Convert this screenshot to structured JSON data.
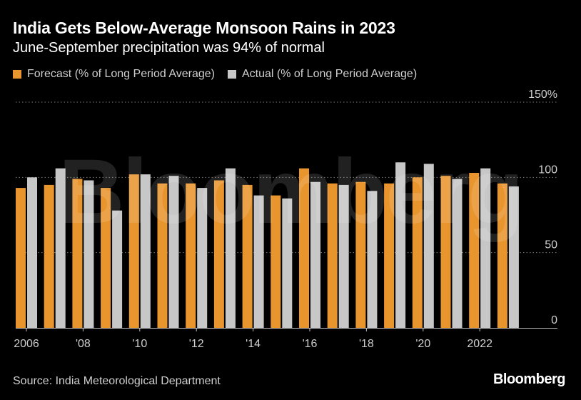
{
  "title": "India Gets Below-Average Monsoon Rains in 2023",
  "subtitle": "June-September precipitation was 94% of normal",
  "source": "Source: India Meteorological Department",
  "brand": "Bloomberg",
  "watermark": "Bloomberg",
  "colors": {
    "forecast": "#E8952E",
    "actual": "#C7C7C7",
    "grid": "#7a7a7a",
    "axis": "#bfbfbf"
  },
  "chart_data": {
    "type": "bar",
    "categories": [
      "2006",
      "2007",
      "2008",
      "2009",
      "2010",
      "2011",
      "2012",
      "2013",
      "2014",
      "2015",
      "2016",
      "2017",
      "2018",
      "2019",
      "2020",
      "2021",
      "2022",
      "2023"
    ],
    "series": [
      {
        "name": "Forecast (% of Long Period Average)",
        "values": [
          93,
          95,
          99,
          93,
          102,
          96,
          96,
          98,
          95,
          88,
          106,
          96,
          97,
          96,
          100,
          101,
          103,
          96
        ]
      },
      {
        "name": "Actual (% of Long Period Average)",
        "values": [
          100,
          106,
          98,
          78,
          102,
          101,
          93,
          106,
          88,
          86,
          97,
          95,
          91,
          110,
          109,
          99,
          106,
          94
        ]
      }
    ],
    "x_tick_labels": [
      "2006",
      "'08",
      "'10",
      "'12",
      "'14",
      "'16",
      "'18",
      "'20",
      "2022"
    ],
    "x_tick_categories": [
      "2006",
      "2008",
      "2010",
      "2012",
      "2014",
      "2016",
      "2018",
      "2020",
      "2022"
    ],
    "y_tick_labels": [
      "0",
      "50",
      "100",
      "150%"
    ],
    "y_ticks": [
      0,
      50,
      100,
      150
    ],
    "ylim": [
      0,
      150
    ],
    "grid": true,
    "legend_position": "top-left"
  }
}
